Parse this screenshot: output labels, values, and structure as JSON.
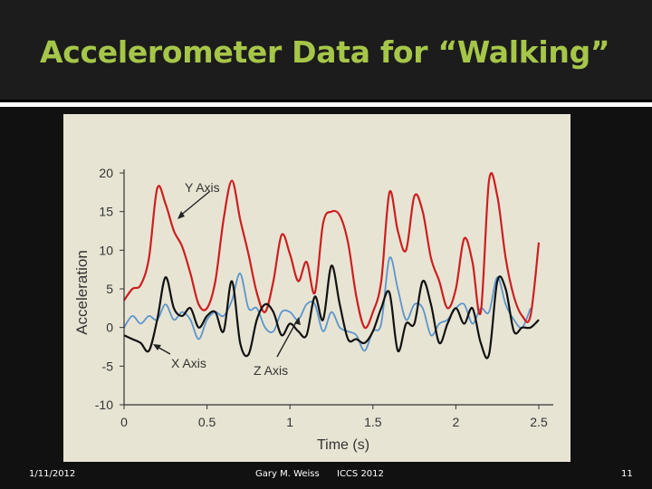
{
  "slide": {
    "title": "Accelerometer Data for “Walking”",
    "footer": {
      "date": "1/11/2012",
      "author": "Gary M. Weiss",
      "venue": "ICCS 2012",
      "page_number": "11"
    }
  },
  "chart_data": {
    "type": "line",
    "title": "",
    "xlabel": "Time (s)",
    "ylabel": "Acceleration",
    "xlim": [
      0,
      2.5
    ],
    "ylim": [
      -10,
      20
    ],
    "x_ticks": [
      "0",
      "0.5",
      "1",
      "1.5",
      "2",
      "2.5"
    ],
    "y_ticks": [
      "20",
      "15",
      "10",
      "5",
      "0",
      "-5",
      "-10"
    ],
    "grid": false,
    "background": "#e8e4d4",
    "annotations": [
      "Y Axis",
      "X Axis",
      "Z Axis"
    ],
    "series": [
      {
        "name": "Y Axis",
        "color": "#cc1f1f",
        "points": [
          [
            0,
            3.5
          ],
          [
            0.05,
            5
          ],
          [
            0.1,
            5.5
          ],
          [
            0.15,
            9
          ],
          [
            0.2,
            18
          ],
          [
            0.25,
            16
          ],
          [
            0.3,
            12.5
          ],
          [
            0.35,
            10.5
          ],
          [
            0.4,
            7
          ],
          [
            0.45,
            3
          ],
          [
            0.5,
            2.5
          ],
          [
            0.55,
            6
          ],
          [
            0.6,
            14
          ],
          [
            0.65,
            19
          ],
          [
            0.7,
            14
          ],
          [
            0.75,
            9.5
          ],
          [
            0.8,
            4.5
          ],
          [
            0.85,
            2
          ],
          [
            0.9,
            6
          ],
          [
            0.95,
            12
          ],
          [
            1.0,
            9.5
          ],
          [
            1.05,
            6
          ],
          [
            1.1,
            8.5
          ],
          [
            1.15,
            4.5
          ],
          [
            1.2,
            13.5
          ],
          [
            1.25,
            15
          ],
          [
            1.3,
            14.5
          ],
          [
            1.35,
            11
          ],
          [
            1.4,
            4
          ],
          [
            1.45,
            0
          ],
          [
            1.5,
            2
          ],
          [
            1.55,
            6
          ],
          [
            1.6,
            17.5
          ],
          [
            1.65,
            12.5
          ],
          [
            1.7,
            10
          ],
          [
            1.75,
            17
          ],
          [
            1.8,
            15
          ],
          [
            1.85,
            9
          ],
          [
            1.9,
            6
          ],
          [
            1.95,
            2.5
          ],
          [
            2.0,
            5
          ],
          [
            2.05,
            11.5
          ],
          [
            2.1,
            8.5
          ],
          [
            2.15,
            2
          ],
          [
            2.2,
            19
          ],
          [
            2.25,
            17
          ],
          [
            2.3,
            9
          ],
          [
            2.35,
            4
          ],
          [
            2.4,
            1.5
          ],
          [
            2.45,
            1.5
          ],
          [
            2.5,
            11
          ]
        ]
      },
      {
        "name": "X Axis",
        "color": "#111111",
        "points": [
          [
            0,
            -1
          ],
          [
            0.05,
            -1.5
          ],
          [
            0.1,
            -2
          ],
          [
            0.15,
            -3
          ],
          [
            0.2,
            1
          ],
          [
            0.25,
            6.5
          ],
          [
            0.3,
            2.5
          ],
          [
            0.35,
            1.5
          ],
          [
            0.4,
            2.5
          ],
          [
            0.45,
            0
          ],
          [
            0.5,
            1.5
          ],
          [
            0.55,
            2
          ],
          [
            0.6,
            -0.5
          ],
          [
            0.65,
            6
          ],
          [
            0.7,
            -2
          ],
          [
            0.75,
            -3.5
          ],
          [
            0.8,
            1
          ],
          [
            0.85,
            3
          ],
          [
            0.9,
            2
          ],
          [
            0.95,
            -1
          ],
          [
            1.0,
            0.5
          ],
          [
            1.05,
            -0.5
          ],
          [
            1.1,
            -1
          ],
          [
            1.15,
            4
          ],
          [
            1.2,
            1
          ],
          [
            1.25,
            8
          ],
          [
            1.3,
            3
          ],
          [
            1.35,
            -1.5
          ],
          [
            1.4,
            -1.5
          ],
          [
            1.45,
            -2
          ],
          [
            1.5,
            -0.5
          ],
          [
            1.55,
            2.5
          ],
          [
            1.6,
            4.5
          ],
          [
            1.65,
            -3
          ],
          [
            1.7,
            0.5
          ],
          [
            1.75,
            0.5
          ],
          [
            1.8,
            6
          ],
          [
            1.85,
            3
          ],
          [
            1.9,
            -2
          ],
          [
            1.95,
            0.5
          ],
          [
            2.0,
            2.5
          ],
          [
            2.05,
            0.5
          ],
          [
            2.1,
            2.5
          ],
          [
            2.15,
            -2
          ],
          [
            2.2,
            -3.5
          ],
          [
            2.25,
            6
          ],
          [
            2.3,
            5
          ],
          [
            2.35,
            -0.5
          ],
          [
            2.4,
            0
          ],
          [
            2.45,
            0
          ],
          [
            2.5,
            1
          ]
        ]
      },
      {
        "name": "Z Axis",
        "color": "#5b95cc",
        "points": [
          [
            0,
            0
          ],
          [
            0.05,
            1.5
          ],
          [
            0.1,
            0.5
          ],
          [
            0.15,
            1.5
          ],
          [
            0.2,
            1
          ],
          [
            0.25,
            3
          ],
          [
            0.3,
            1
          ],
          [
            0.35,
            2
          ],
          [
            0.4,
            1
          ],
          [
            0.45,
            -1.5
          ],
          [
            0.5,
            1
          ],
          [
            0.55,
            2
          ],
          [
            0.6,
            1.5
          ],
          [
            0.65,
            3.5
          ],
          [
            0.7,
            7
          ],
          [
            0.75,
            2.5
          ],
          [
            0.8,
            2.5
          ],
          [
            0.85,
            0
          ],
          [
            0.9,
            -0.5
          ],
          [
            0.95,
            2
          ],
          [
            1.0,
            2
          ],
          [
            1.05,
            1
          ],
          [
            1.1,
            3
          ],
          [
            1.15,
            3
          ],
          [
            1.2,
            -0.5
          ],
          [
            1.25,
            2
          ],
          [
            1.3,
            0
          ],
          [
            1.35,
            -0.5
          ],
          [
            1.4,
            -1
          ],
          [
            1.45,
            -3
          ],
          [
            1.5,
            -0.5
          ],
          [
            1.55,
            0.5
          ],
          [
            1.6,
            9
          ],
          [
            1.65,
            5
          ],
          [
            1.7,
            1
          ],
          [
            1.75,
            3
          ],
          [
            1.8,
            2.5
          ],
          [
            1.85,
            -1
          ],
          [
            1.9,
            0.5
          ],
          [
            1.95,
            1
          ],
          [
            2.0,
            2.5
          ],
          [
            2.05,
            3
          ],
          [
            2.1,
            0.5
          ],
          [
            2.15,
            2.5
          ],
          [
            2.2,
            2
          ],
          [
            2.25,
            6.5
          ],
          [
            2.3,
            3
          ],
          [
            2.35,
            1
          ],
          [
            2.4,
            0
          ],
          [
            2.45,
            2.5
          ]
        ]
      }
    ]
  }
}
